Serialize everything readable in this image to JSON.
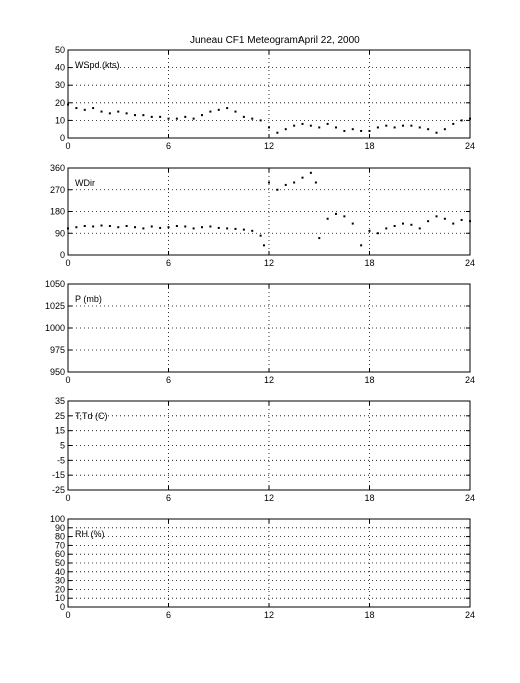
{
  "title": {
    "station": "Juneau CF1 Meteogram:",
    "date": "April 22, 2000"
  },
  "chart_data": [
    {
      "type": "scatter",
      "label": "WSpd (kts)",
      "x_range": [
        0,
        24
      ],
      "x_ticks": [
        0,
        6,
        12,
        18,
        24
      ],
      "ylim": [
        0,
        50
      ],
      "y_ticks": [
        0,
        10,
        20,
        30,
        40,
        50
      ],
      "grid": true,
      "marker_color": "#000000",
      "x": [
        0,
        0.5,
        1,
        1.5,
        2,
        2.5,
        3,
        3.5,
        4,
        4.5,
        5,
        5.5,
        6,
        6.5,
        7,
        7.5,
        8,
        8.5,
        9,
        9.5,
        10,
        10.5,
        11,
        11.5,
        12,
        12.5,
        13,
        13.5,
        14,
        14.5,
        15,
        15.5,
        16,
        16.5,
        17,
        17.5,
        18,
        18.5,
        19,
        19.5,
        20,
        20.5,
        21,
        21.5,
        22,
        22.5,
        23,
        23.5,
        24
      ],
      "y": [
        19,
        17,
        16,
        17,
        15,
        14,
        15,
        14,
        13,
        13,
        12,
        12,
        11,
        11,
        12,
        11,
        13,
        15,
        16,
        17,
        15,
        12,
        11,
        10,
        6,
        3,
        5,
        7,
        8,
        7,
        6,
        8,
        6,
        4,
        5,
        4,
        4,
        6,
        7,
        6,
        7,
        7,
        6,
        5,
        3,
        5,
        8,
        10,
        11
      ]
    },
    {
      "type": "scatter",
      "label": "WDir",
      "x_range": [
        0,
        24
      ],
      "x_ticks": [
        0,
        6,
        12,
        18,
        24
      ],
      "ylim": [
        0,
        360
      ],
      "y_ticks": [
        0,
        90,
        180,
        270,
        360
      ],
      "grid": true,
      "marker_color": "#000000",
      "x": [
        0,
        0.5,
        1,
        1.5,
        2,
        2.5,
        3,
        3.5,
        4,
        4.5,
        5,
        5.5,
        6,
        6.5,
        7,
        7.5,
        8,
        8.5,
        9,
        9.5,
        10,
        10.5,
        11,
        11.5,
        11.7,
        12,
        12.5,
        13,
        13.5,
        14,
        14.5,
        14.8,
        15,
        15.5,
        16,
        16.5,
        17,
        17.5,
        18,
        18.5,
        19,
        19.5,
        20,
        20.5,
        21,
        21.5,
        22,
        22.5,
        23,
        23.5,
        24
      ],
      "y": [
        110,
        115,
        120,
        118,
        122,
        120,
        115,
        120,
        115,
        110,
        118,
        112,
        115,
        120,
        118,
        110,
        115,
        118,
        112,
        110,
        108,
        105,
        100,
        80,
        40,
        300,
        270,
        290,
        300,
        320,
        340,
        300,
        70,
        150,
        170,
        160,
        130,
        40,
        100,
        90,
        110,
        120,
        130,
        125,
        110,
        140,
        160,
        150,
        130,
        145,
        140
      ]
    },
    {
      "type": "scatter",
      "label": "P (mb)",
      "x_range": [
        0,
        24
      ],
      "x_ticks": [
        0,
        6,
        12,
        18,
        24
      ],
      "ylim": [
        950,
        1050
      ],
      "y_ticks": [
        950,
        975,
        1000,
        1025,
        1050
      ],
      "grid": true,
      "x": [],
      "y": []
    },
    {
      "type": "scatter",
      "label": "T,Td (C)",
      "x_range": [
        0,
        24
      ],
      "x_ticks": [
        0,
        6,
        12,
        18,
        24
      ],
      "ylim": [
        -25,
        35
      ],
      "y_ticks": [
        -25,
        -15,
        -5,
        5,
        15,
        25,
        35
      ],
      "grid": true,
      "x": [],
      "y": []
    },
    {
      "type": "scatter",
      "label": "RH (%)",
      "x_range": [
        0,
        24
      ],
      "x_ticks": [
        0,
        6,
        12,
        18,
        24
      ],
      "ylim": [
        0,
        100
      ],
      "y_ticks": [
        0,
        10,
        20,
        30,
        40,
        50,
        60,
        70,
        80,
        90,
        100
      ],
      "grid": true,
      "x": [],
      "y": []
    }
  ]
}
